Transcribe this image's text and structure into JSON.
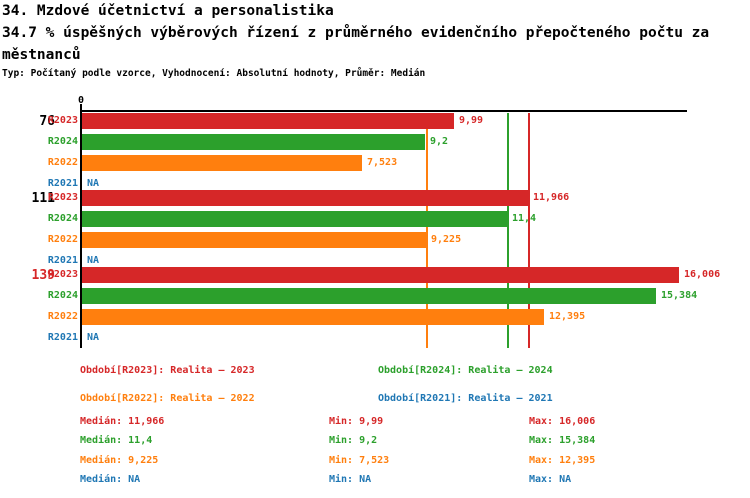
{
  "header": {
    "title_line1": "34. Mzdové účetnictví a personalistika",
    "title_line2": "34.7 % úspěšných výběrových řízení z průměrného evidenčního přepočteného počtu za",
    "title_line3": "městnanců",
    "subtitle": "Typ: Počítaný podle vzorce, Vyhodnocení: Absolutní hodnoty, Průměr: Medián"
  },
  "colors": {
    "r2023": "#d62728",
    "r2024": "#2ca02c",
    "r2022": "#ff7f0e",
    "r2021": "#1f77b4",
    "axis": "#000000"
  },
  "chart_data": {
    "type": "bar",
    "orientation": "horizontal",
    "xlim": [
      0,
      16.22
    ],
    "x_tick_labels": [
      "0"
    ],
    "zero_label": "0",
    "grid": false,
    "median_lines": [
      {
        "series": "R2023",
        "value": 11.966,
        "color": "#d62728"
      },
      {
        "series": "R2024",
        "value": 11.4,
        "color": "#2ca02c"
      },
      {
        "series": "R2022",
        "value": 9.225,
        "color": "#ff7f0e"
      }
    ],
    "groups": [
      {
        "label": "76",
        "label_color": "#000000",
        "bars": [
          {
            "series": "R2023",
            "value": 9.99,
            "display": "9,99",
            "color": "#d62728"
          },
          {
            "series": "R2024",
            "value": 9.2,
            "display": "9,2",
            "color": "#2ca02c"
          },
          {
            "series": "R2022",
            "value": 7.523,
            "display": "7,523",
            "color": "#ff7f0e"
          },
          {
            "series": "R2021",
            "value": null,
            "display": "NA",
            "color": "#1f77b4"
          }
        ]
      },
      {
        "label": "111",
        "label_color": "#000000",
        "bars": [
          {
            "series": "R2023",
            "value": 11.966,
            "display": "11,966",
            "color": "#d62728"
          },
          {
            "series": "R2024",
            "value": 11.4,
            "display": "11,4",
            "color": "#2ca02c"
          },
          {
            "series": "R2022",
            "value": 9.225,
            "display": "9,225",
            "color": "#ff7f0e"
          },
          {
            "series": "R2021",
            "value": null,
            "display": "NA",
            "color": "#1f77b4"
          }
        ]
      },
      {
        "label": "139",
        "label_color": "#d62728",
        "bars": [
          {
            "series": "R2023",
            "value": 16.006,
            "display": "16,006",
            "color": "#d62728"
          },
          {
            "series": "R2024",
            "value": 15.384,
            "display": "15,384",
            "color": "#2ca02c"
          },
          {
            "series": "R2022",
            "value": 12.395,
            "display": "12,395",
            "color": "#ff7f0e"
          },
          {
            "series": "R2021",
            "value": null,
            "display": "NA",
            "color": "#1f77b4"
          }
        ]
      }
    ],
    "legend": [
      {
        "label": "Období[R2023]: Realita – 2023",
        "color": "#d62728"
      },
      {
        "label": "Období[R2024]: Realita – 2024",
        "color": "#2ca02c"
      },
      {
        "label": "Období[R2022]: Realita – 2022",
        "color": "#ff7f0e"
      },
      {
        "label": "Období[R2021]: Realita – 2021",
        "color": "#1f77b4"
      }
    ],
    "stats": [
      {
        "median": "Medián: 11,966",
        "min": "Min: 9,99",
        "max": "Max: 16,006",
        "color": "#d62728"
      },
      {
        "median": "Medián: 11,4",
        "min": "Min: 9,2",
        "max": "Max: 15,384",
        "color": "#2ca02c"
      },
      {
        "median": "Medián: 9,225",
        "min": "Min: 7,523",
        "max": "Max: 12,395",
        "color": "#ff7f0e"
      },
      {
        "median": "Medián: NA",
        "min": "Min: NA",
        "max": "Max: NA",
        "color": "#1f77b4"
      }
    ]
  }
}
